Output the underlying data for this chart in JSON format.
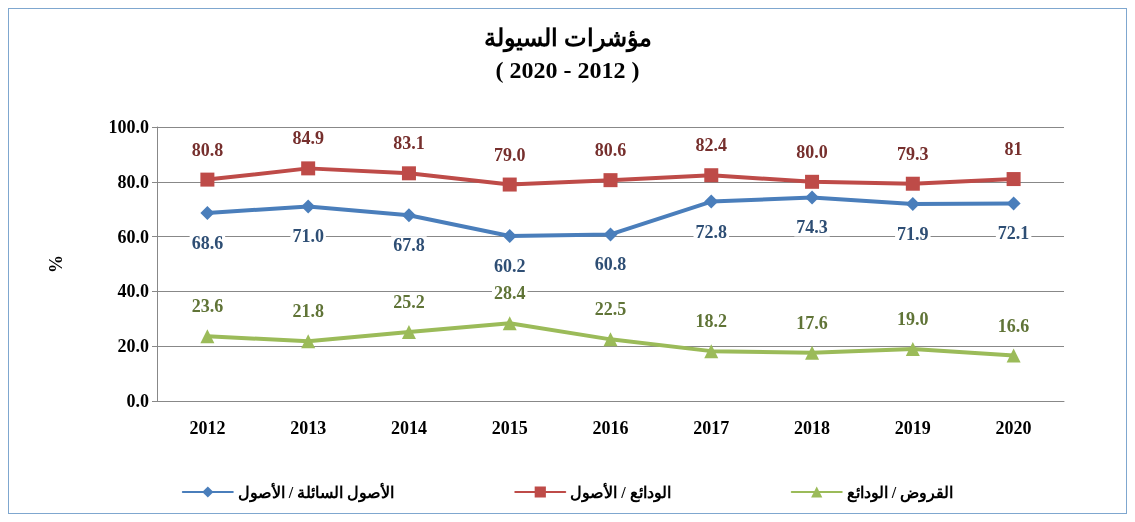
{
  "chart_data": {
    "type": "line",
    "title": "مؤشرات السيولة",
    "subtitle": "( 2020 - 2012 )",
    "ylabel": "%",
    "categories": [
      "2012",
      "2013",
      "2014",
      "2015",
      "2016",
      "2017",
      "2018",
      "2019",
      "2020"
    ],
    "ylim": [
      0,
      100
    ],
    "yticks": [
      {
        "value": 0,
        "label": "0.0"
      },
      {
        "value": 20,
        "label": "20.0"
      },
      {
        "value": 40,
        "label": "40.0"
      },
      {
        "value": 60,
        "label": "60.0"
      },
      {
        "value": 80,
        "label": "80.0"
      },
      {
        "value": 100,
        "label": "100.0"
      }
    ],
    "grid": "y",
    "legend": "bottom",
    "line_style": "solid",
    "data_labels": true,
    "series": [
      {
        "name": "الأصول السائلة / الأصول",
        "color": "#4a7ebb",
        "marker": "diamond",
        "values": [
          68.6,
          71.0,
          67.8,
          60.2,
          60.8,
          72.8,
          74.3,
          71.9,
          72.1
        ],
        "value_labels": [
          "68.6",
          "71.0",
          "67.8",
          "60.2",
          "60.8",
          "72.8",
          "74.3",
          "71.9",
          "72.1"
        ]
      },
      {
        "name": "الودائع / الأصول",
        "color": "#be4b48",
        "marker": "square",
        "values": [
          80.8,
          84.9,
          83.1,
          79.0,
          80.6,
          82.4,
          80.0,
          79.3,
          81
        ],
        "value_labels": [
          "80.8",
          "84.9",
          "83.1",
          "79.0",
          "80.6",
          "82.4",
          "80.0",
          "79.3",
          "81"
        ]
      },
      {
        "name": "القروض / الودائع",
        "color": "#9bbb59",
        "marker": "triangle",
        "values": [
          23.6,
          21.8,
          25.2,
          28.4,
          22.5,
          18.2,
          17.6,
          19.0,
          16.6
        ],
        "value_labels": [
          "23.6",
          "21.8",
          "25.2",
          "28.4",
          "22.5",
          "18.2",
          "17.6",
          "19.0",
          "16.6"
        ]
      }
    ]
  }
}
